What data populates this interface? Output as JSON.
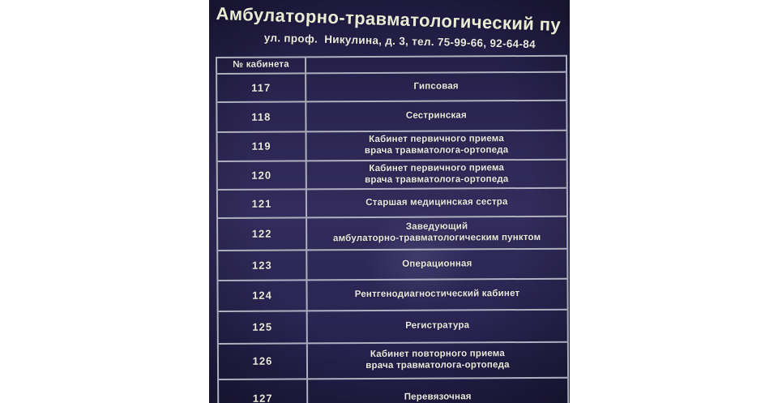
{
  "sign": {
    "title": "Амбулаторно-травматологический пу",
    "subtitle": "ул. проф.  Никулина, д. 3, тел. 75-99-66, 92-64-84",
    "table": {
      "col1_header": "№ кабинета",
      "col2_header": "",
      "rows": [
        {
          "cabinet": "117",
          "purpose_lines": [
            "Гипсовая"
          ]
        },
        {
          "cabinet": "118",
          "purpose_lines": [
            "Сестринская"
          ]
        },
        {
          "cabinet": "119",
          "purpose_lines": [
            "Кабинет первичного приема",
            "врача травматолога-ортопеда"
          ]
        },
        {
          "cabinet": "120",
          "purpose_lines": [
            "Кабинет первичного приема",
            "врача травматолога-ортопеда"
          ]
        },
        {
          "cabinet": "121",
          "purpose_lines": [
            "Старшая медицинская сестра"
          ]
        },
        {
          "cabinet": "122",
          "purpose_lines": [
            "Заведующий",
            "амбулаторно-травматологическим пунктом"
          ]
        },
        {
          "cabinet": "123",
          "purpose_lines": [
            "Операционная"
          ]
        },
        {
          "cabinet": "124",
          "purpose_lines": [
            "Рентгенодиагностический кабинет"
          ]
        },
        {
          "cabinet": "125",
          "purpose_lines": [
            "Регистратура"
          ]
        },
        {
          "cabinet": "126",
          "purpose_lines": [
            "Кабинет повторного приема",
            "врача травматолога-ортопеда"
          ]
        },
        {
          "cabinet": "127",
          "purpose_lines": [
            "Перевязочная"
          ]
        }
      ]
    }
  },
  "colors": {
    "sign_bg": "#2c2654",
    "sign_bg_dark": "#1e1a3e",
    "line": "#aeb0c0",
    "title_text": "#e9ecd2",
    "body_text": "#e9e8db"
  }
}
